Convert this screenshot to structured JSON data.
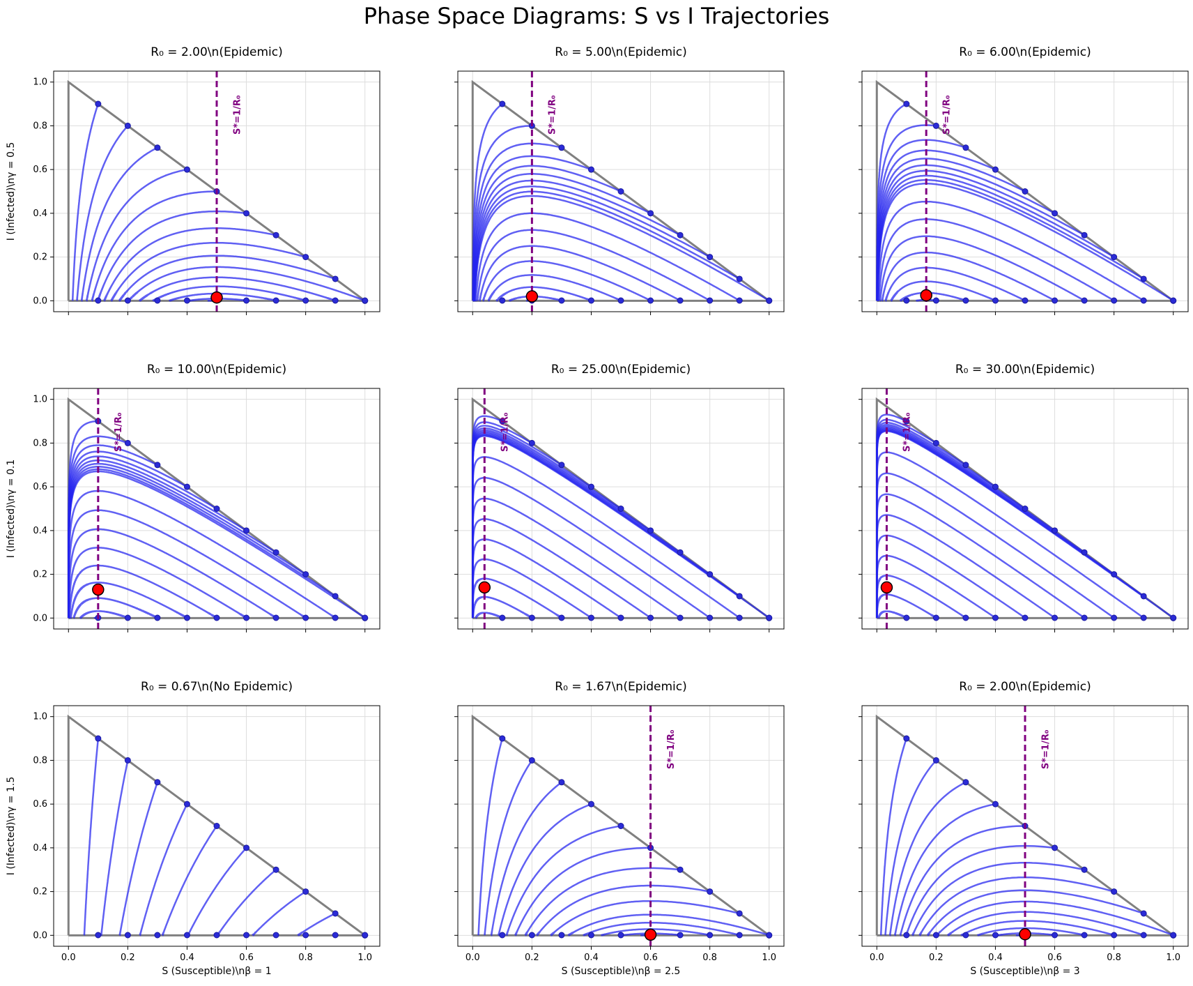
{
  "figure": {
    "title": "Phase Space Diagrams: S vs I Trajectories"
  },
  "colors": {
    "trajectory": "#2222ee",
    "simplex": "#808080",
    "threshold": "#800080",
    "endpoint": "#ff0000",
    "start_point": "#2b2bd6",
    "grid": "#dddddd"
  },
  "chart_data": [
    {
      "type": "line",
      "title": "R₀ = 2.00\\n(Epidemic)",
      "R0": 2.0,
      "beta": 1,
      "gamma": 0.5,
      "xlabel": "",
      "ylabel": "I (Infected)\\nγ = 0.5",
      "xlim": [
        -0.05,
        1.05
      ],
      "ylim": [
        -0.05,
        1.05
      ],
      "grid": true,
      "threshold_S": 0.5,
      "threshold_label": "S*=1/R₀",
      "endpoint": [
        0.5,
        0.015
      ]
    },
    {
      "type": "line",
      "title": "R₀ = 5.00\\n(Epidemic)",
      "R0": 5.0,
      "beta": 2.5,
      "gamma": 0.5,
      "xlabel": "",
      "ylabel": "",
      "xlim": [
        -0.05,
        1.05
      ],
      "ylim": [
        -0.05,
        1.05
      ],
      "grid": true,
      "threshold_S": 0.2,
      "threshold_label": "S*=1/R₀",
      "endpoint": [
        0.2,
        0.02
      ]
    },
    {
      "type": "line",
      "title": "R₀ = 6.00\\n(Epidemic)",
      "R0": 6.0,
      "beta": 3,
      "gamma": 0.5,
      "xlabel": "",
      "ylabel": "",
      "xlim": [
        -0.05,
        1.05
      ],
      "ylim": [
        -0.05,
        1.05
      ],
      "grid": true,
      "threshold_S": 0.1667,
      "threshold_label": "S*=1/R₀",
      "endpoint": [
        0.1667,
        0.025
      ]
    },
    {
      "type": "line",
      "title": "R₀ = 10.00\\n(Epidemic)",
      "R0": 10.0,
      "beta": 1,
      "gamma": 0.1,
      "xlabel": "",
      "ylabel": "I (Infected)\\nγ = 0.1",
      "xlim": [
        -0.05,
        1.05
      ],
      "ylim": [
        -0.05,
        1.05
      ],
      "grid": true,
      "threshold_S": 0.1,
      "threshold_label": "S*=1/R₀",
      "endpoint": [
        0.1,
        0.13
      ]
    },
    {
      "type": "line",
      "title": "R₀ = 25.00\\n(Epidemic)",
      "R0": 25.0,
      "beta": 2.5,
      "gamma": 0.1,
      "xlabel": "",
      "ylabel": "",
      "xlim": [
        -0.05,
        1.05
      ],
      "ylim": [
        -0.05,
        1.05
      ],
      "grid": true,
      "threshold_S": 0.04,
      "threshold_label": "S*=1/R₀",
      "endpoint": [
        0.04,
        0.14
      ]
    },
    {
      "type": "line",
      "title": "R₀ = 30.00\\n(Epidemic)",
      "R0": 30.0,
      "beta": 3,
      "gamma": 0.1,
      "xlabel": "",
      "ylabel": "",
      "xlim": [
        -0.05,
        1.05
      ],
      "ylim": [
        -0.05,
        1.05
      ],
      "grid": true,
      "threshold_S": 0.0333,
      "threshold_label": "S*=1/R₀",
      "endpoint": [
        0.0333,
        0.14
      ]
    },
    {
      "type": "line",
      "title": "R₀ = 0.67\\n(No Epidemic)",
      "R0": 0.667,
      "beta": 1,
      "gamma": 1.5,
      "xlabel": "S (Susceptible)\\nβ = 1",
      "ylabel": "I (Infected)\\nγ = 1.5",
      "xlim": [
        -0.05,
        1.05
      ],
      "ylim": [
        -0.05,
        1.05
      ],
      "grid": true,
      "threshold_S": null,
      "threshold_label": "",
      "endpoint": null
    },
    {
      "type": "line",
      "title": "R₀ = 1.67\\n(Epidemic)",
      "R0": 1.667,
      "beta": 2.5,
      "gamma": 1.5,
      "xlabel": "S (Susceptible)\\nβ = 2.5",
      "ylabel": "",
      "xlim": [
        -0.05,
        1.05
      ],
      "ylim": [
        -0.05,
        1.05
      ],
      "grid": true,
      "threshold_S": 0.6,
      "threshold_label": "S*=1/R₀",
      "endpoint": [
        0.6,
        0.003
      ]
    },
    {
      "type": "line",
      "title": "R₀ = 2.00\\n(Epidemic)",
      "R0": 2.0,
      "beta": 3,
      "gamma": 1.5,
      "xlabel": "S (Susceptible)\\nβ = 3",
      "ylabel": "",
      "xlim": [
        -0.05,
        1.05
      ],
      "ylim": [
        -0.05,
        1.05
      ],
      "grid": true,
      "threshold_S": 0.5,
      "threshold_label": "S*=1/R₀",
      "endpoint": [
        0.5,
        0.005
      ]
    }
  ],
  "axes": {
    "x_ticks": [
      "0.0",
      "0.2",
      "0.4",
      "0.6",
      "0.8",
      "1.0"
    ],
    "y_ticks": [
      "0.0",
      "0.2",
      "0.4",
      "0.6",
      "0.8",
      "1.0"
    ],
    "tick_values": [
      0,
      0.2,
      0.4,
      0.6,
      0.8,
      1.0
    ]
  },
  "initial_conditions": {
    "boundary_starts": [
      [
        0.1,
        0.9
      ],
      [
        0.2,
        0.8
      ],
      [
        0.3,
        0.7
      ],
      [
        0.4,
        0.6
      ],
      [
        0.5,
        0.5
      ],
      [
        0.6,
        0.4
      ],
      [
        0.7,
        0.3
      ],
      [
        0.8,
        0.2
      ],
      [
        0.9,
        0.1
      ],
      [
        1.0,
        0.0
      ]
    ],
    "near_axis_starts": [
      [
        0.1,
        0.001
      ],
      [
        0.2,
        0.001
      ],
      [
        0.3,
        0.001
      ],
      [
        0.4,
        0.001
      ],
      [
        0.5,
        0.001
      ],
      [
        0.6,
        0.001
      ],
      [
        0.7,
        0.001
      ],
      [
        0.8,
        0.001
      ],
      [
        0.9,
        0.001
      ],
      [
        1.0,
        0.001
      ]
    ]
  }
}
